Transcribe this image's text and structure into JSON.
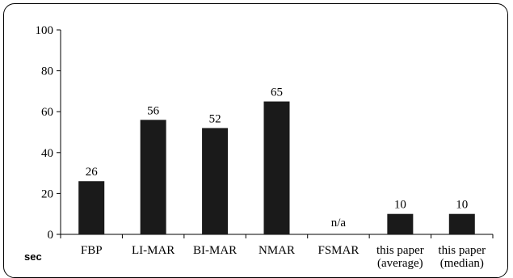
{
  "chart_data": {
    "type": "bar",
    "categories": [
      "FBP",
      "LI-MAR",
      "BI-MAR",
      "NMAR",
      "FSMAR",
      "this paper\n(average)",
      "this paper\n(median)"
    ],
    "values": [
      26,
      56,
      52,
      65,
      null,
      10,
      10
    ],
    "data_labels": [
      "26",
      "56",
      "52",
      "65",
      "n/a",
      "10",
      "10"
    ],
    "ylabel": "sec",
    "ylim": [
      0,
      100
    ],
    "yticks": [
      0,
      20,
      40,
      60,
      80,
      100
    ],
    "bar_color": "#1a1a1a",
    "grid": false,
    "legend": "none"
  }
}
